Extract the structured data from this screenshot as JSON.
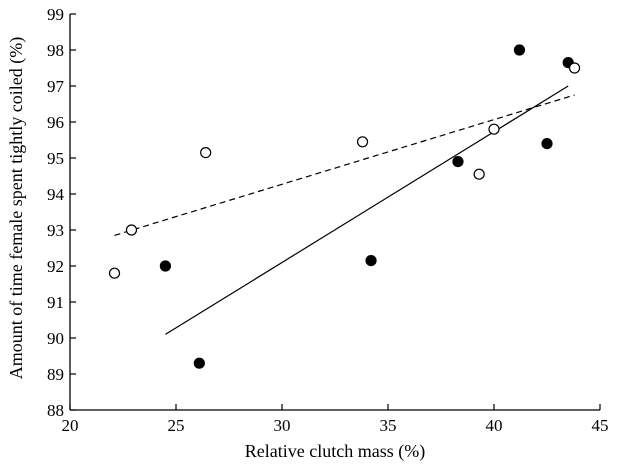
{
  "chart_data": {
    "type": "scatter",
    "title": "",
    "xlabel": "Relative clutch mass (%)",
    "ylabel": "Amount of time female spent tightly coiled (%)",
    "xlim": [
      20,
      45
    ],
    "ylim": [
      88,
      99
    ],
    "xticks": [
      20,
      25,
      30,
      35,
      40,
      45
    ],
    "yticks": [
      88,
      89,
      90,
      91,
      92,
      93,
      94,
      95,
      96,
      97,
      98,
      99
    ],
    "grid": false,
    "legend": "none",
    "series": [
      {
        "marker": "filled-circle",
        "points": [
          {
            "x": 24.5,
            "y": 92.0
          },
          {
            "x": 26.1,
            "y": 89.3
          },
          {
            "x": 34.2,
            "y": 92.15
          },
          {
            "x": 38.3,
            "y": 94.9
          },
          {
            "x": 41.2,
            "y": 98.0
          },
          {
            "x": 42.5,
            "y": 95.4
          },
          {
            "x": 43.5,
            "y": 97.65
          }
        ],
        "fit": {
          "style": "solid",
          "x1": 24.5,
          "y1": 90.1,
          "x2": 43.5,
          "y2": 97.0
        }
      },
      {
        "marker": "open-circle",
        "points": [
          {
            "x": 22.1,
            "y": 91.8
          },
          {
            "x": 22.9,
            "y": 93.0
          },
          {
            "x": 26.4,
            "y": 95.15
          },
          {
            "x": 33.8,
            "y": 95.45
          },
          {
            "x": 39.3,
            "y": 94.55
          },
          {
            "x": 40.0,
            "y": 95.8
          },
          {
            "x": 43.8,
            "y": 97.5
          }
        ],
        "fit": {
          "style": "dashed",
          "x1": 22.1,
          "y1": 92.85,
          "x2": 43.8,
          "y2": 96.75
        }
      }
    ]
  }
}
